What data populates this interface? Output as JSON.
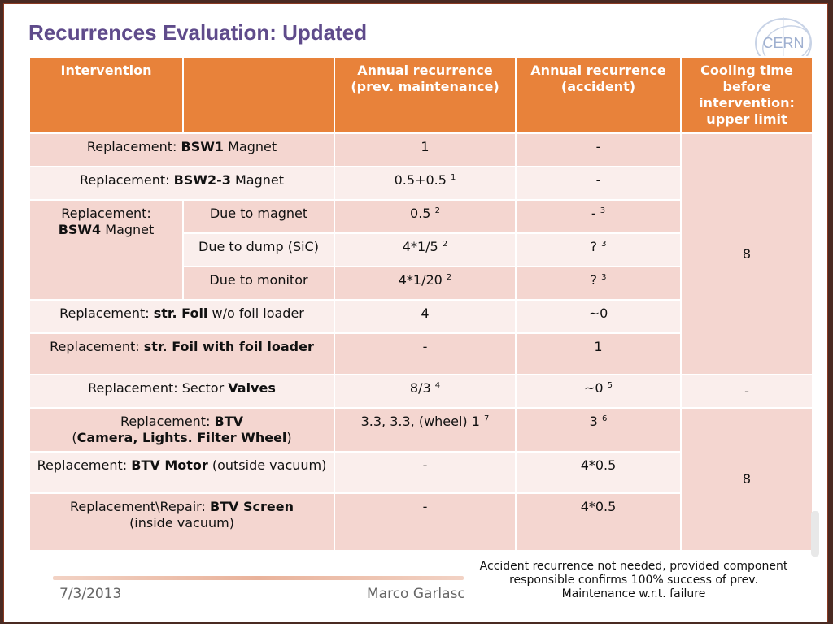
{
  "title": "Recurrences Evaluation: Updated",
  "logo": {
    "text": "CERN",
    "icon": "cern-logo"
  },
  "header": {
    "intervention": "Intervention",
    "blank": "",
    "prev_maintenance": "Annual recurrence (prev. maintenance)",
    "accident": "Annual recurrence (accident)",
    "cooling": "Cooling time before intervention: upper limit"
  },
  "rows": [
    {
      "pre": "Replacement: ",
      "bold": "BSW1",
      "post": " Magnet",
      "prev": "1",
      "prev_sup": "",
      "acc": "-",
      "acc_sup": ""
    },
    {
      "pre": "Replacement: ",
      "bold": "BSW2-3",
      "post": " Magnet",
      "prev": "0.5+0.5",
      "prev_sup": "1",
      "acc": "-",
      "acc_sup": ""
    }
  ],
  "bsw4": {
    "pre": "Replacement:",
    "bold": "BSW4",
    "post": " Magnet",
    "subs": [
      {
        "label": "Due to magnet",
        "prev": "0.5",
        "prev_sup": "2",
        "acc": "-",
        "acc_sup": "3"
      },
      {
        "label": "Due to dump (SiC)",
        "prev": "4*1/5",
        "prev_sup": "2",
        "acc": "?",
        "acc_sup": "3"
      },
      {
        "label": "Due to monitor",
        "prev": "4*1/20",
        "prev_sup": "2",
        "acc": "?",
        "acc_sup": "3"
      }
    ]
  },
  "foil_rows": [
    {
      "pre": "Replacement: ",
      "bold": "str. Foil",
      "post": " w/o foil loader",
      "prev": "4",
      "acc": "~0"
    },
    {
      "pre": "Replacement: ",
      "bold": "str. Foil with foil loader",
      "post": "",
      "prev": "-",
      "acc": "1"
    }
  ],
  "cooling_group1": "8",
  "valves": {
    "pre": "Replacement: Sector ",
    "bold": "Valves",
    "prev": "8/3",
    "prev_sup": "4",
    "acc": "~0",
    "acc_sup": "5",
    "cooling": "-"
  },
  "btv": {
    "pre": "Replacement: ",
    "bold": "BTV",
    "line2_open": "(",
    "line2_bold": "Camera, Lights. Filter Wheel",
    "line2_close": ")",
    "prev": "3.3, 3.3, (wheel) 1",
    "prev_sup": "7",
    "acc": "3",
    "acc_sup": "6"
  },
  "btv_motor": {
    "pre": "Replacement: ",
    "bold": "BTV Motor",
    "post": " (outside vacuum)",
    "prev": "-",
    "acc": "4*0.5"
  },
  "btv_screen": {
    "pre": "Replacement\\Repair: ",
    "bold": "BTV Screen",
    "post": "(inside vacuum)",
    "prev": "-",
    "acc": "4*0.5"
  },
  "cooling_group2": "8",
  "footer": {
    "date": "7/3/2013",
    "author": "Marco Garlasc",
    "note": "Accident recurrence not needed, provided component responsible confirms 100% success of prev. Maintenance w.r.t. failure"
  }
}
